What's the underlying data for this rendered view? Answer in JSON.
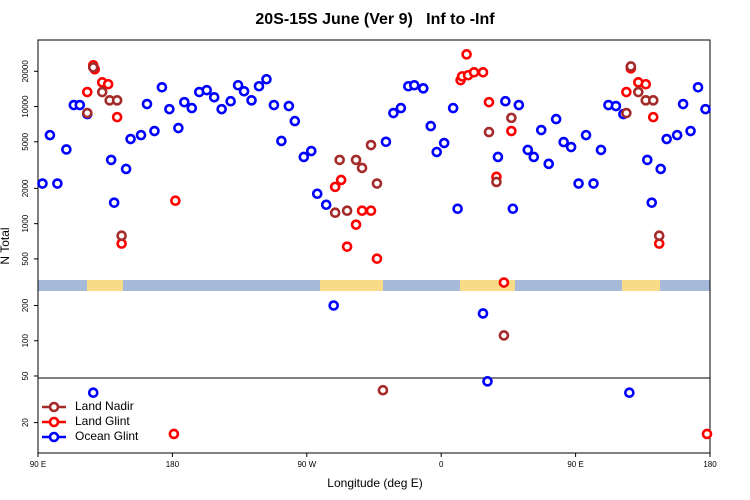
{
  "chart_data": {
    "type": "scatter",
    "title": "20S-15S June (Ver 9)   Inf to -Inf",
    "x_label": "Longitude (deg E)",
    "y_label": "N Total",
    "xlim": [
      90,
      540
    ],
    "xticks": [
      {
        "value": 90,
        "label": "90 E"
      },
      {
        "value": 180,
        "label": "180"
      },
      {
        "value": 270,
        "label": "90 W"
      },
      {
        "value": 360,
        "label": "0"
      },
      {
        "value": 450,
        "label": "90 E"
      },
      {
        "value": 540,
        "label": "180"
      }
    ],
    "ylim": [
      11,
      37000
    ],
    "log_y": true,
    "yticks": [
      20,
      50,
      100,
      200,
      500,
      1000,
      2000,
      5000,
      10000,
      20000
    ],
    "legend": "lower left",
    "series": [
      {
        "name": "Land Nadir",
        "color": "#a52a2a",
        "x": [
          123,
          127,
          133,
          138,
          143,
          146,
          289,
          292,
          297,
          303,
          307,
          313,
          317,
          321,
          392,
          397,
          402,
          407,
          484,
          487,
          492,
          497,
          502,
          506
        ],
        "values": [
          8800,
          21600,
          13300,
          11300,
          11300,
          789,
          1240,
          3500,
          1290,
          3500,
          2990,
          4690,
          2200,
          37.8,
          6050,
          2270,
          111,
          8000,
          8800,
          22000,
          13300,
          11300,
          11300,
          789
        ]
      },
      {
        "name": "Land Glint",
        "color": "#ff0000",
        "x": [
          123,
          127,
          128,
          133,
          137,
          143,
          146,
          181,
          182,
          289,
          293,
          297,
          303,
          307,
          313,
          317,
          373,
          374,
          377,
          378,
          382,
          388,
          392,
          397,
          402,
          407,
          484,
          487,
          492,
          497,
          502,
          506,
          538
        ],
        "values": [
          13300,
          22500,
          20800,
          16100,
          15500,
          8120,
          675,
          16,
          1570,
          2060,
          2360,
          636,
          980,
          1290,
          1290,
          502,
          16800,
          18100,
          27900,
          18500,
          19600,
          19600,
          10900,
          2510,
          314,
          6180,
          13300,
          21200,
          16100,
          15500,
          8120,
          675,
          16
        ]
      },
      {
        "name": "Ocean Glint",
        "color": "#0000ff",
        "x": [
          93,
          98,
          103,
          109,
          114,
          118,
          123,
          127,
          139,
          141,
          149,
          152,
          159,
          163,
          168,
          173,
          178,
          184,
          188,
          193,
          198,
          203,
          208,
          213,
          219,
          224,
          228,
          233,
          238,
          243,
          248,
          253,
          258,
          262,
          268,
          273,
          277,
          283,
          288,
          323,
          328,
          333,
          338,
          342,
          348,
          353,
          357,
          362,
          368,
          371,
          388,
          391,
          398,
          403,
          408,
          412,
          418,
          422,
          427,
          432,
          437,
          442,
          447,
          452,
          457,
          462,
          467,
          472,
          477,
          482,
          486,
          498,
          501,
          507,
          511,
          518,
          522,
          527,
          532,
          537
        ],
        "values": [
          2200,
          5700,
          2200,
          4300,
          10300,
          10300,
          8620,
          36,
          3500,
          1510,
          2930,
          5280,
          5700,
          10500,
          6180,
          14600,
          9500,
          6550,
          10900,
          9700,
          13300,
          13800,
          12000,
          9500,
          11100,
          15200,
          13500,
          11300,
          14900,
          17100,
          10300,
          5080,
          10100,
          7510,
          3710,
          4170,
          1800,
          1450,
          200,
          5000,
          8800,
          9700,
          14900,
          15200,
          14300,
          6810,
          4090,
          4880,
          9700,
          1340,
          171,
          45,
          3710,
          11100,
          1340,
          10300,
          4260,
          3710,
          6300,
          3240,
          7810,
          4970,
          4510,
          2200,
          5700,
          2200,
          4260,
          10300,
          10100,
          8620,
          36,
          3500,
          1510,
          2930,
          5280,
          5700,
          10500,
          6180,
          14600,
          9500
        ]
      }
    ]
  }
}
